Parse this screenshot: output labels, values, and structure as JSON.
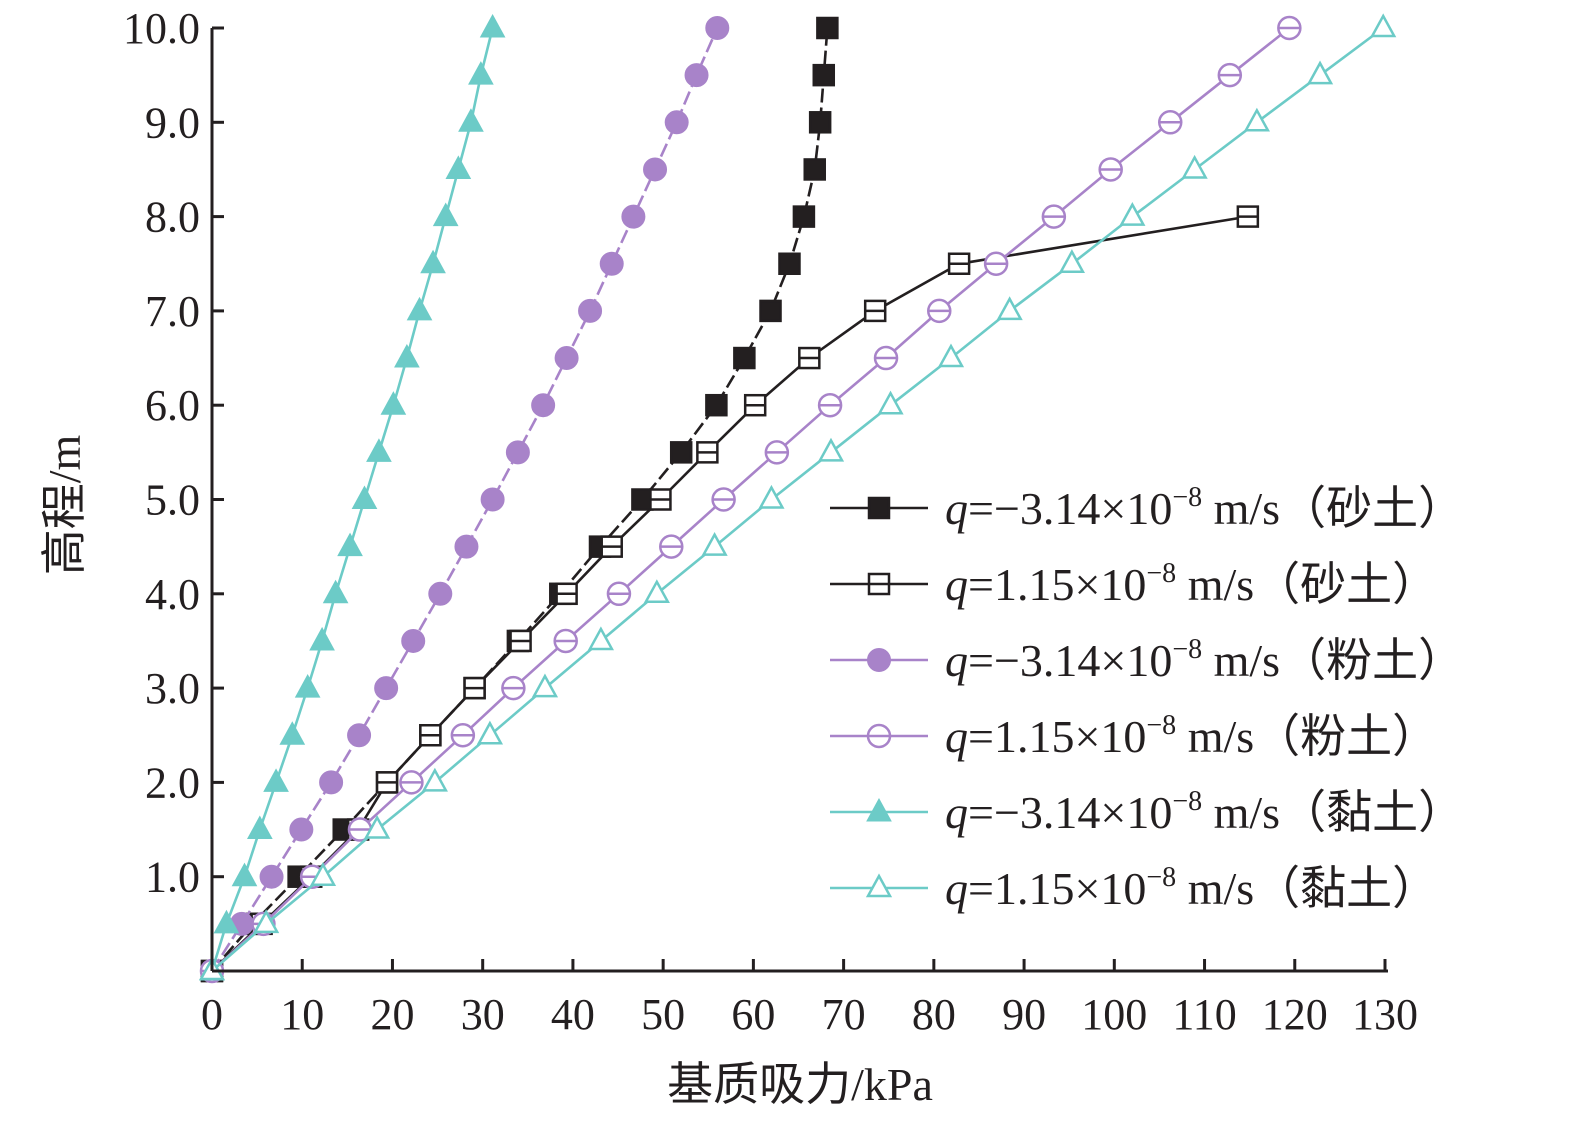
{
  "chart_data": {
    "type": "line",
    "xlabel": "基质吸力/kPa",
    "ylabel": "高程/m",
    "xlim": [
      0,
      130
    ],
    "ylim": [
      0,
      10
    ],
    "xticks": [
      "0",
      "10",
      "20",
      "30",
      "40",
      "50",
      "60",
      "70",
      "80",
      "90",
      "100",
      "110",
      "120",
      "130"
    ],
    "yticks": [
      "1.0",
      "2.0",
      "3.0",
      "4.0",
      "5.0",
      "6.0",
      "7.0",
      "8.0",
      "9.0",
      "10.0"
    ],
    "grid": false,
    "legend_position": "right",
    "series": [
      {
        "name": "q=−3.14×10−8 m/s（砂土）",
        "q_symbol": "q",
        "q_value": "=−3.14×10",
        "q_exp": "−8",
        "q_unit": " m/s（砂土）",
        "color": "#231f20",
        "marker": "filled-square",
        "dashed": true,
        "points": [
          [
            0,
            0
          ],
          [
            4.5,
            0.5
          ],
          [
            9.6,
            1.0
          ],
          [
            14.6,
            1.5
          ],
          [
            19.4,
            2.0
          ],
          [
            24.2,
            2.5
          ],
          [
            29.1,
            3.0
          ],
          [
            33.9,
            3.5
          ],
          [
            38.6,
            4.0
          ],
          [
            43.0,
            4.5
          ],
          [
            47.7,
            5.0
          ],
          [
            52.0,
            5.5
          ],
          [
            55.9,
            6.0
          ],
          [
            59.0,
            6.5
          ],
          [
            61.9,
            7.0
          ],
          [
            64.0,
            7.5
          ],
          [
            65.6,
            8.0
          ],
          [
            66.8,
            8.5
          ],
          [
            67.4,
            9.0
          ],
          [
            67.8,
            9.5
          ],
          [
            68.2,
            10.0
          ]
        ]
      },
      {
        "name": "q=1.15×10−8 m/s（砂土）",
        "q_symbol": "q",
        "q_value": "=1.15×10",
        "q_exp": "−8",
        "q_unit": " m/s（砂土）",
        "color": "#231f20",
        "marker": "open-square",
        "dashed": false,
        "points": [
          [
            0,
            0
          ],
          [
            5.5,
            0.5
          ],
          [
            11.0,
            1.0
          ],
          [
            16.2,
            1.5
          ],
          [
            19.4,
            2.0
          ],
          [
            24.2,
            2.5
          ],
          [
            29.1,
            3.0
          ],
          [
            34.2,
            3.5
          ],
          [
            39.3,
            4.0
          ],
          [
            44.3,
            4.5
          ],
          [
            49.7,
            5.0
          ],
          [
            54.9,
            5.5
          ],
          [
            60.2,
            6.0
          ],
          [
            66.2,
            6.5
          ],
          [
            73.5,
            7.0
          ],
          [
            82.8,
            7.5
          ],
          [
            114.8,
            8.0
          ]
        ]
      },
      {
        "name": "q=−3.14×10−8 m/s（粉土）",
        "q_symbol": "q",
        "q_value": "=−3.14×10",
        "q_exp": "−8",
        "q_unit": " m/s（粉土）",
        "color": "#a883c9",
        "marker": "filled-circle",
        "dashed": true,
        "points": [
          [
            0,
            0
          ],
          [
            3.3,
            0.5
          ],
          [
            6.6,
            1.0
          ],
          [
            9.9,
            1.5
          ],
          [
            13.2,
            2.0
          ],
          [
            16.3,
            2.5
          ],
          [
            19.3,
            3.0
          ],
          [
            22.3,
            3.5
          ],
          [
            25.3,
            4.0
          ],
          [
            28.2,
            4.5
          ],
          [
            31.1,
            5.0
          ],
          [
            33.9,
            5.5
          ],
          [
            36.7,
            6.0
          ],
          [
            39.3,
            6.5
          ],
          [
            41.9,
            7.0
          ],
          [
            44.3,
            7.5
          ],
          [
            46.7,
            8.0
          ],
          [
            49.1,
            8.5
          ],
          [
            51.5,
            9.0
          ],
          [
            53.7,
            9.5
          ],
          [
            56.0,
            10.0
          ]
        ]
      },
      {
        "name": "q=1.15×10−8 m/s（粉土）",
        "q_symbol": "q",
        "q_value": "=1.15×10",
        "q_exp": "−8",
        "q_unit": " m/s（粉土）",
        "color": "#a883c9",
        "marker": "open-circle",
        "dashed": false,
        "points": [
          [
            0,
            0
          ],
          [
            5.7,
            0.5
          ],
          [
            11.1,
            1.0
          ],
          [
            16.4,
            1.5
          ],
          [
            22.1,
            2.0
          ],
          [
            27.8,
            2.5
          ],
          [
            33.4,
            3.0
          ],
          [
            39.2,
            3.5
          ],
          [
            45.1,
            4.0
          ],
          [
            50.9,
            4.5
          ],
          [
            56.7,
            5.0
          ],
          [
            62.6,
            5.5
          ],
          [
            68.5,
            6.0
          ],
          [
            74.7,
            6.5
          ],
          [
            80.6,
            7.0
          ],
          [
            86.9,
            7.5
          ],
          [
            93.3,
            8.0
          ],
          [
            99.6,
            8.5
          ],
          [
            106.2,
            9.0
          ],
          [
            112.8,
            9.5
          ],
          [
            119.4,
            10.0
          ]
        ]
      },
      {
        "name": "q=−3.14×10−8 m/s（黏土）",
        "q_symbol": "q",
        "q_value": "=−3.14×10",
        "q_exp": "−8",
        "q_unit": " m/s（黏土）",
        "color": "#6ccbc7",
        "marker": "filled-triangle",
        "dashed": false,
        "points": [
          [
            0,
            0
          ],
          [
            1.6,
            0.5
          ],
          [
            3.6,
            1.0
          ],
          [
            5.3,
            1.5
          ],
          [
            7.1,
            2.0
          ],
          [
            8.9,
            2.5
          ],
          [
            10.6,
            3.0
          ],
          [
            12.2,
            3.5
          ],
          [
            13.7,
            4.0
          ],
          [
            15.3,
            4.5
          ],
          [
            16.9,
            5.0
          ],
          [
            18.5,
            5.5
          ],
          [
            20.1,
            6.0
          ],
          [
            21.6,
            6.5
          ],
          [
            23.0,
            7.0
          ],
          [
            24.5,
            7.5
          ],
          [
            25.9,
            8.0
          ],
          [
            27.3,
            8.5
          ],
          [
            28.7,
            9.0
          ],
          [
            29.8,
            9.5
          ],
          [
            31.1,
            10.0
          ]
        ]
      },
      {
        "name": "q=1.15×10−8 m/s（黏土）",
        "q_symbol": "q",
        "q_value": "=1.15×10",
        "q_exp": "−8",
        "q_unit": " m/s（黏土）",
        "color": "#6ccbc7",
        "marker": "open-triangle",
        "dashed": false,
        "points": [
          [
            0,
            0
          ],
          [
            6.0,
            0.5
          ],
          [
            12.3,
            1.0
          ],
          [
            18.3,
            1.5
          ],
          [
            24.7,
            2.0
          ],
          [
            30.8,
            2.5
          ],
          [
            36.9,
            3.0
          ],
          [
            43.1,
            3.5
          ],
          [
            49.3,
            4.0
          ],
          [
            55.7,
            4.5
          ],
          [
            62.0,
            5.0
          ],
          [
            68.6,
            5.5
          ],
          [
            75.2,
            6.0
          ],
          [
            81.9,
            6.5
          ],
          [
            88.4,
            7.0
          ],
          [
            95.3,
            7.5
          ],
          [
            102.0,
            8.0
          ],
          [
            108.9,
            8.5
          ],
          [
            115.8,
            9.0
          ],
          [
            122.8,
            9.5
          ],
          [
            129.8,
            10.0
          ]
        ]
      }
    ]
  }
}
